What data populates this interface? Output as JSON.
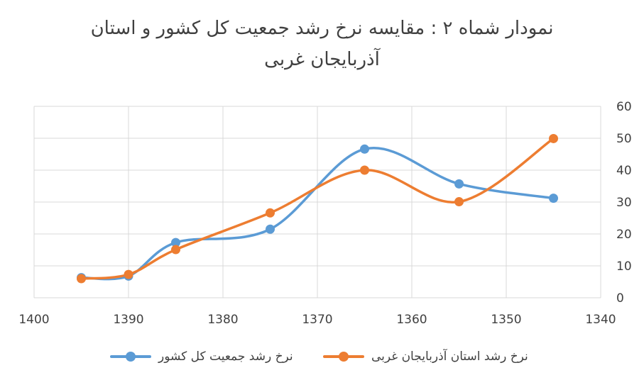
{
  "chart_data": {
    "type": "line",
    "title": "نمودار شماه ۲ : مقایسه نرخ رشد جمعیت کل کشور و استان",
    "subtitle": "آذربایجان غربی",
    "x": [
      1395,
      1390,
      1385,
      1375,
      1365,
      1355,
      1345
    ],
    "xlim": [
      1400,
      1340
    ],
    "x_reversed": true,
    "x_ticks": [
      "1400",
      "1390",
      "1380",
      "1370",
      "1360",
      "1350",
      "1340"
    ],
    "ylim": [
      0,
      60
    ],
    "y_ticks": [
      "0",
      "10",
      "20",
      "30",
      "40",
      "50",
      "60"
    ],
    "y_axis_side": "right",
    "grid": true,
    "smooth": true,
    "legend_position": "bottom",
    "series": [
      {
        "name": "نرخ رشد جمعیت کل کشور",
        "color": "#5B9BD5",
        "values": [
          6.3,
          6.8,
          17.3,
          21.5,
          46.6,
          35.7,
          31.2
        ]
      },
      {
        "name": "نرخ رشد استان آذربایجان غربی",
        "color": "#ED7D31",
        "values": [
          6.0,
          7.3,
          15.1,
          26.6,
          40.0,
          30.1,
          49.9
        ]
      }
    ]
  }
}
